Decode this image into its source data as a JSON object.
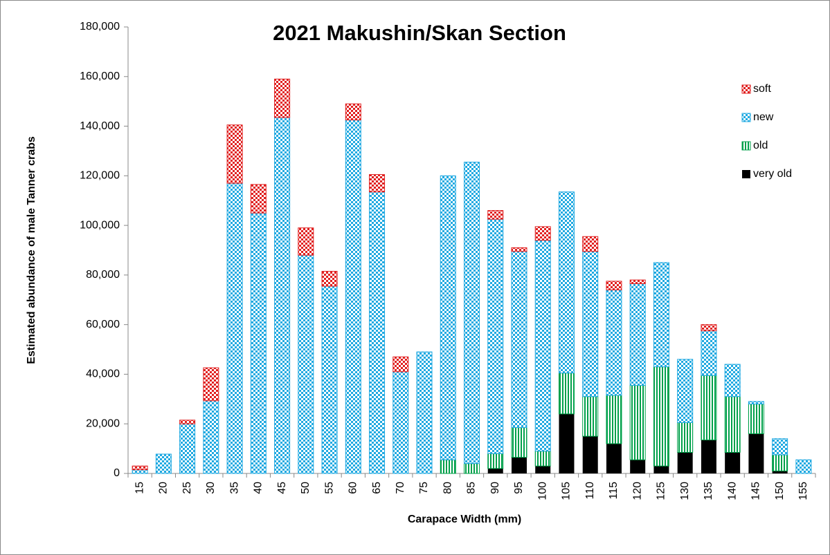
{
  "chart_data": {
    "type": "stacked_bar",
    "title": "2021 Makushin/Skan Section",
    "xlabel": "Carapace Width (mm)",
    "ylabel": "Estimated abundance of male Tanner crabs",
    "categories": [
      "15",
      "20",
      "25",
      "30",
      "35",
      "40",
      "45",
      "50",
      "55",
      "60",
      "65",
      "70",
      "75",
      "80",
      "85",
      "90",
      "95",
      "100",
      "105",
      "110",
      "115",
      "120",
      "125",
      "130",
      "135",
      "140",
      "145",
      "150",
      "155"
    ],
    "series": [
      {
        "name": "very old",
        "color": "#000000",
        "pattern": "solid",
        "values": [
          0,
          0,
          0,
          0,
          0,
          0,
          0,
          0,
          0,
          0,
          0,
          0,
          0,
          0,
          0,
          2000,
          6500,
          3000,
          24000,
          15000,
          12000,
          5500,
          3000,
          8500,
          13500,
          8500,
          16000,
          1000,
          0
        ]
      },
      {
        "name": "old",
        "color": "#00a04a",
        "pattern": "stripes",
        "values": [
          0,
          0,
          0,
          0,
          0,
          0,
          0,
          0,
          0,
          0,
          0,
          0,
          0,
          5500,
          4000,
          6000,
          12000,
          6000,
          16500,
          16000,
          19500,
          30000,
          40000,
          12000,
          26000,
          22500,
          12000,
          6500,
          0
        ]
      },
      {
        "name": "new",
        "color": "#1fa9e1",
        "pattern": "checker",
        "values": [
          1500,
          7800,
          20000,
          29300,
          117000,
          105000,
          143500,
          88000,
          75500,
          142500,
          113500,
          41000,
          49000,
          114500,
          121500,
          94500,
          71000,
          85000,
          73000,
          58500,
          42500,
          41000,
          42000,
          25500,
          18000,
          13000,
          1000,
          6500,
          5500
        ]
      },
      {
        "name": "soft",
        "color": "#e02020",
        "pattern": "checker",
        "values": [
          1500,
          0,
          1500,
          13300,
          23500,
          11500,
          15500,
          11000,
          6000,
          6500,
          7000,
          6000,
          0,
          0,
          0,
          3500,
          1500,
          5500,
          0,
          6000,
          3500,
          1500,
          0,
          0,
          2500,
          0,
          0,
          0,
          0
        ]
      }
    ],
    "ylim": [
      0,
      180000
    ],
    "yticks": [
      {
        "value": 0,
        "label": "0"
      },
      {
        "value": 20000,
        "label": "20,000"
      },
      {
        "value": 40000,
        "label": "40,000"
      },
      {
        "value": 60000,
        "label": "60,000"
      },
      {
        "value": 80000,
        "label": "80,000"
      },
      {
        "value": 100000,
        "label": "100,000"
      },
      {
        "value": 120000,
        "label": "120,000"
      },
      {
        "value": 140000,
        "label": "140,000"
      },
      {
        "value": 160000,
        "label": "160,000"
      },
      {
        "value": 180000,
        "label": "180,000"
      }
    ],
    "legend": "upper right"
  }
}
